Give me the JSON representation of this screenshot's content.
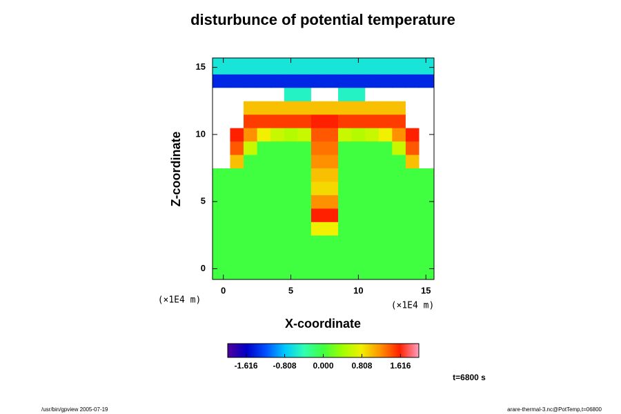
{
  "chart_data": {
    "type": "heatmap",
    "title": "disturbunce of potential temperature",
    "xlabel": "X-coordinate",
    "ylabel": "Z-coordinate",
    "x_unit": "(×1E4 m)",
    "y_unit": "(×1E4 m)",
    "annotation": "t=6800 s",
    "footer_left": "/usr/bin/gpview 2005-07-19",
    "footer_right": "arare-thermal-3.nc@PotTemp,t=06800",
    "xlim": [
      -0.8,
      15.6
    ],
    "ylim": [
      -0.8,
      15.7
    ],
    "xticks": [
      0,
      5,
      10,
      15
    ],
    "yticks": [
      0,
      5,
      10,
      15
    ],
    "xbins": [
      -0.8,
      0.5,
      1.5,
      2.5,
      3.5,
      4.5,
      5.5,
      6.5,
      7.5,
      8.5,
      9.5,
      10.5,
      11.5,
      12.5,
      13.5,
      14.5,
      15.6
    ],
    "ybins": [
      -0.8,
      0.5,
      1.5,
      2.5,
      3.5,
      4.5,
      5.5,
      6.5,
      7.5,
      8.5,
      9.5,
      10.5,
      11.5,
      12.5,
      13.5,
      14.5,
      15.7
    ],
    "z": [
      [
        0,
        0,
        0,
        0,
        0,
        0,
        0,
        0,
        0,
        0,
        0,
        0,
        0,
        0,
        0,
        0
      ],
      [
        0,
        0,
        0,
        0,
        0,
        0,
        0,
        0,
        0,
        0,
        0,
        0,
        0,
        0,
        0,
        0
      ],
      [
        0,
        0,
        0,
        0,
        0,
        0,
        0,
        0,
        0,
        0,
        0,
        0,
        0,
        0,
        0,
        0
      ],
      [
        0,
        0,
        0,
        0,
        0,
        0,
        0,
        0.8,
        0.8,
        0,
        0,
        0,
        0,
        0,
        0,
        0
      ],
      [
        0,
        0,
        0,
        0,
        0,
        0,
        0,
        1.6,
        1.6,
        0,
        0,
        0,
        0,
        0,
        0,
        0
      ],
      [
        0,
        0,
        0,
        0,
        0,
        0,
        0,
        1.2,
        1.2,
        0,
        0,
        0,
        0,
        0,
        0,
        0
      ],
      [
        0,
        0,
        0,
        0,
        0,
        0,
        0,
        0.9,
        0.9,
        0,
        0,
        0,
        0,
        0,
        0,
        0
      ],
      [
        0,
        0,
        0,
        0,
        0,
        0,
        0,
        1.0,
        1.0,
        0,
        0,
        0,
        0,
        0,
        0,
        0
      ],
      [
        2.5,
        1.0,
        0,
        0,
        0,
        0,
        0,
        1.2,
        1.2,
        0,
        0,
        0,
        0,
        0,
        1.0,
        2.5
      ],
      [
        2.5,
        1.4,
        0.6,
        0,
        0,
        0,
        0,
        1.3,
        1.3,
        0,
        0,
        0,
        0,
        0.6,
        1.4,
        2.5
      ],
      [
        2.5,
        1.6,
        1.2,
        0.8,
        0.6,
        0.5,
        0.6,
        1.4,
        1.4,
        0.6,
        0.5,
        0.6,
        0.8,
        1.2,
        1.6,
        2.5
      ],
      [
        2.5,
        2.5,
        1.5,
        1.5,
        1.5,
        1.5,
        1.5,
        1.6,
        1.6,
        1.5,
        1.5,
        1.5,
        1.5,
        1.5,
        2.5,
        2.5
      ],
      [
        2.5,
        2.5,
        1.0,
        1.0,
        1.0,
        1.0,
        1.0,
        1.0,
        1.0,
        1.0,
        1.0,
        1.0,
        1.0,
        1.0,
        2.5,
        2.5
      ],
      [
        2.5,
        2.5,
        2.5,
        2.5,
        2.5,
        -0.5,
        -0.5,
        2.5,
        2.5,
        -0.5,
        -0.5,
        2.5,
        2.5,
        2.5,
        2.5,
        2.5
      ],
      [
        -1.4,
        -1.4,
        -1.4,
        -1.4,
        -1.4,
        -1.4,
        -1.4,
        -1.4,
        -1.4,
        -1.4,
        -1.4,
        -1.4,
        -1.4,
        -1.4,
        -1.4,
        -1.4
      ],
      [
        -0.6,
        -0.6,
        -0.6,
        -0.6,
        -0.6,
        -0.6,
        -0.6,
        -0.6,
        -0.6,
        -0.6,
        -0.6,
        -0.6,
        -0.6,
        -0.6,
        -0.6,
        -0.6
      ]
    ],
    "clim": [
      -2,
      2
    ],
    "colors": [
      "#50009a",
      "#0000c8",
      "#0050ff",
      "#00c8ff",
      "#30ffb0",
      "#40ff40",
      "#a0ff00",
      "#f0f000",
      "#ff9000",
      "#ff2000",
      "#ffa0c0"
    ],
    "cticks": [
      -1.616,
      -0.808,
      {
        "value": 0,
        "label": "0.000"
      },
      0.808,
      1.616
    ]
  }
}
